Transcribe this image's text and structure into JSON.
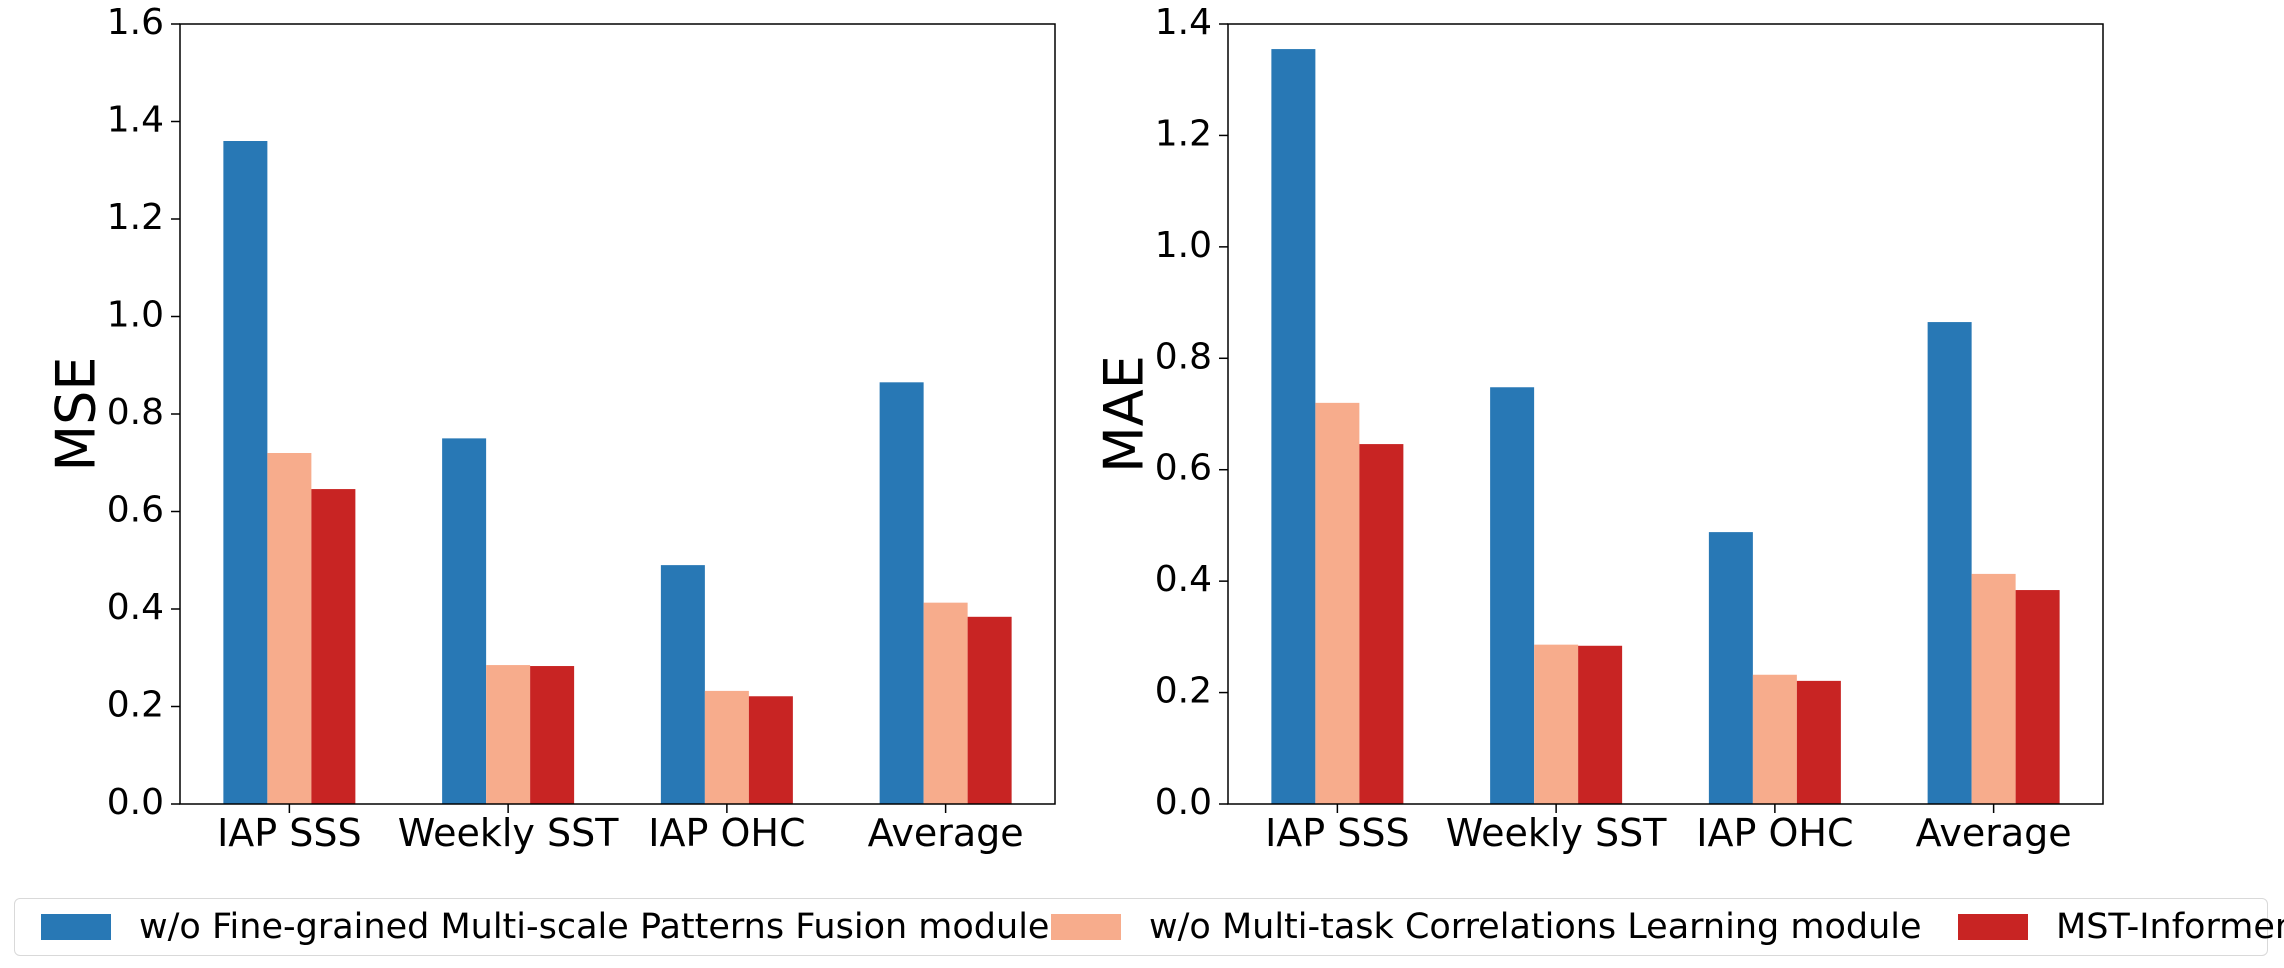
{
  "chart_data": [
    {
      "type": "bar",
      "categories": [
        "IAP SSS",
        "Weekly SST",
        "IAP OHC",
        "Average"
      ],
      "ylabel": "MSE",
      "ylim": [
        0,
        1.6
      ],
      "yticks": [
        "0.0",
        "0.2",
        "0.4",
        "0.6",
        "0.8",
        "1.0",
        "1.2",
        "1.4",
        "1.6"
      ],
      "series": [
        {
          "name": "w/o Fine-grained Multi-scale Patterns Fusion module",
          "color": "#2878b5",
          "values": [
            1.36,
            0.75,
            0.49,
            0.865
          ]
        },
        {
          "name": "w/o Multi-task Correlations Learning module",
          "color": "#f7ac8c",
          "values": [
            0.72,
            0.285,
            0.232,
            0.413
          ]
        },
        {
          "name": "MST-Informer",
          "color": "#c82423",
          "values": [
            0.646,
            0.283,
            0.221,
            0.384
          ]
        }
      ]
    },
    {
      "type": "bar",
      "categories": [
        "IAP SSS",
        "Weekly SST",
        "IAP OHC",
        "Average"
      ],
      "ylabel": "MAE",
      "ylim": [
        0,
        1.4
      ],
      "yticks": [
        "0.0",
        "0.2",
        "0.4",
        "0.6",
        "0.8",
        "1.0",
        "1.2",
        "1.4"
      ],
      "series": [
        {
          "name": "w/o Fine-grained Multi-scale Patterns Fusion module",
          "color": "#2878b5",
          "values": [
            1.355,
            0.748,
            0.488,
            0.865
          ]
        },
        {
          "name": "w/o Multi-task Correlations Learning module",
          "color": "#f7ac8c",
          "values": [
            0.72,
            0.286,
            0.232,
            0.413
          ]
        },
        {
          "name": "MST-Informer",
          "color": "#c82423",
          "values": [
            0.646,
            0.284,
            0.221,
            0.384
          ]
        }
      ]
    }
  ],
  "legend": {
    "placement": "bottom",
    "items": [
      {
        "label": "w/o Fine-grained Multi-scale Patterns Fusion module",
        "color": "#2878b5"
      },
      {
        "label": "w/o Multi-task Correlations Learning module",
        "color": "#f7ac8c"
      },
      {
        "label": "MST-Informer",
        "color": "#c82423"
      }
    ]
  }
}
